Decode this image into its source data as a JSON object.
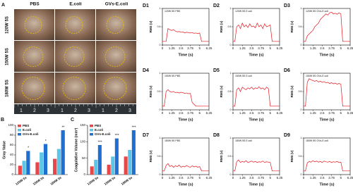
{
  "panel_a": {
    "label": "A",
    "columns": [
      "PBS",
      "E.coli",
      "GVs-E.coli"
    ],
    "rows": [
      "120W 5S",
      "150W 5S",
      "180W 5S"
    ],
    "ruler_labels": [
      "1",
      "2",
      "3"
    ]
  },
  "chart_data": [
    {
      "type": "bar",
      "panel": "B",
      "ylabel": "Gray Value",
      "categories": [
        "120W 5s",
        "150W 5s",
        "180W 5s"
      ],
      "ylim": [
        0,
        100
      ],
      "yticks": [
        0,
        20,
        40,
        60,
        80,
        100
      ],
      "annotations": [
        "*",
        "*",
        "**"
      ],
      "series": [
        {
          "name": "PBS",
          "color": "#e8474a",
          "values": [
            18,
            25,
            32
          ]
        },
        {
          "name": "E.coli",
          "color": "#5cc6e8",
          "values": [
            28,
            45,
            52
          ]
        },
        {
          "name": "GVs-E.coli",
          "color": "#1f6fd0",
          "values": [
            48,
            62,
            90
          ]
        }
      ]
    },
    {
      "type": "bar",
      "panel": "C",
      "ylabel": "Coagulative Volume (mm³)",
      "categories": [
        "120W 5s",
        "150W 5s",
        "180W 5s"
      ],
      "ylim": [
        0,
        150
      ],
      "yticks": [
        0,
        50,
        100,
        150
      ],
      "annotations": [
        "***",
        "***",
        "***"
      ],
      "series": [
        {
          "name": "PBS",
          "color": "#e8474a",
          "values": [
            25,
            30,
            55
          ]
        },
        {
          "name": "E.coli",
          "color": "#5cc6e8",
          "values": [
            45,
            55,
            75
          ]
        },
        {
          "name": "GVs-E.coli",
          "color": "#1f6fd0",
          "values": [
            90,
            110,
            135
          ]
        }
      ]
    },
    {
      "type": "line",
      "panel": "D1",
      "title": "120W 5S PBS",
      "xlabel": "Time (s)",
      "ylabel": "RMS (v)",
      "xlim": [
        0,
        6.25
      ],
      "xticks": [
        0,
        1.25,
        2.5,
        3.75,
        5,
        6.25
      ],
      "ylim": [
        0,
        1
      ],
      "yticks": [
        0,
        0.5,
        1
      ],
      "color": "#e8141c",
      "x": [
        0,
        0.25,
        0.5,
        0.75,
        1,
        1.25,
        1.5,
        1.75,
        2,
        2.25,
        2.5,
        2.75,
        3,
        3.25,
        3.5,
        3.75,
        4,
        4.25,
        4.5,
        4.75,
        5,
        5.25,
        5.5,
        5.75,
        6,
        6.25
      ],
      "values": [
        0.1,
        0.1,
        0.1,
        0.45,
        0.42,
        0.4,
        0.42,
        0.38,
        0.36,
        0.37,
        0.35,
        0.36,
        0.33,
        0.35,
        0.34,
        0.33,
        0.34,
        0.32,
        0.33,
        0.31,
        0.33,
        0.1,
        0.1,
        0.1,
        0.1,
        0.1
      ]
    },
    {
      "type": "line",
      "panel": "D2",
      "title": "120W 5S E.coli",
      "xlabel": "Time (s)",
      "ylabel": "RMS (v)",
      "xlim": [
        0,
        6.25
      ],
      "xticks": [
        0,
        1.25,
        2.5,
        3.75,
        5,
        6.25
      ],
      "ylim": [
        0,
        1
      ],
      "yticks": [
        0,
        0.5,
        1
      ],
      "color": "#e8141c",
      "x": [
        0,
        0.25,
        0.5,
        0.75,
        1,
        1.25,
        1.5,
        1.75,
        2,
        2.25,
        2.5,
        2.75,
        3,
        3.25,
        3.5,
        3.75,
        4,
        4.25,
        4.5,
        4.75,
        5,
        5.25,
        5.5,
        5.75,
        6,
        6.25
      ],
      "values": [
        0.1,
        0.1,
        0.5,
        0.55,
        0.45,
        0.6,
        0.5,
        0.55,
        0.48,
        0.58,
        0.5,
        0.52,
        0.47,
        0.6,
        0.5,
        0.55,
        0.45,
        0.58,
        0.5,
        0.52,
        0.55,
        0.1,
        0.1,
        0.1,
        0.1,
        0.1
      ]
    },
    {
      "type": "line",
      "panel": "D3",
      "title": "120W 5S GVs-E.coli",
      "xlabel": "Time (s)",
      "ylabel": "RMS (v)",
      "xlim": [
        0,
        6.25
      ],
      "xticks": [
        0,
        1.25,
        2.5,
        3.75,
        5,
        6.25
      ],
      "ylim": [
        0,
        1
      ],
      "yticks": [
        0,
        0.5,
        1
      ],
      "color": "#e8141c",
      "x": [
        0,
        0.25,
        0.5,
        0.75,
        1,
        1.25,
        1.5,
        1.75,
        2,
        2.25,
        2.5,
        2.75,
        3,
        3.25,
        3.5,
        3.75,
        4,
        4.25,
        4.5,
        4.75,
        5,
        5.25,
        5.5,
        5.75,
        6,
        6.25
      ],
      "values": [
        0.1,
        0.1,
        0.25,
        0.3,
        0.35,
        0.4,
        0.5,
        0.55,
        0.6,
        0.7,
        0.75,
        0.8,
        0.85,
        0.82,
        0.88,
        0.9,
        0.85,
        0.87,
        0.84,
        0.88,
        0.85,
        0.1,
        0.1,
        0.1,
        0.1,
        0.1
      ]
    },
    {
      "type": "line",
      "panel": "D4",
      "title": "150W 5S PBS",
      "xlabel": "Time (s)",
      "ylabel": "RMS (v)",
      "xlim": [
        0,
        6.25
      ],
      "xticks": [
        0,
        1.25,
        2.5,
        3.75,
        5,
        6.25
      ],
      "ylim": [
        0,
        1
      ],
      "yticks": [
        0,
        0.5,
        1
      ],
      "color": "#e8141c",
      "x": [
        0,
        0.25,
        0.5,
        0.75,
        1,
        1.25,
        1.5,
        1.75,
        2,
        2.25,
        2.5,
        2.75,
        3,
        3.25,
        3.5,
        3.75,
        4,
        4.25,
        4.5,
        4.75,
        5,
        5.25,
        5.5,
        5.75,
        6,
        6.25
      ],
      "values": [
        0.1,
        0.1,
        0.5,
        0.55,
        0.5,
        0.48,
        0.5,
        0.47,
        0.48,
        0.46,
        0.48,
        0.47,
        0.45,
        0.46,
        0.44,
        0.45,
        0.2,
        0.15,
        0.1,
        0.1,
        0.1,
        0.1,
        0.1,
        0.1,
        0.1,
        0.1
      ]
    },
    {
      "type": "line",
      "panel": "D5",
      "title": "150W 5S E.coli",
      "xlabel": "Time (s)",
      "ylabel": "RMS (v)",
      "xlim": [
        0,
        6.25
      ],
      "xticks": [
        0,
        1.25,
        2.5,
        3.75,
        5,
        6.25
      ],
      "ylim": [
        0,
        1
      ],
      "yticks": [
        0,
        0.5,
        1
      ],
      "color": "#e8141c",
      "x": [
        0,
        0.25,
        0.5,
        0.75,
        1,
        1.25,
        1.5,
        1.75,
        2,
        2.25,
        2.5,
        2.75,
        3,
        3.25,
        3.5,
        3.75,
        4,
        4.25,
        4.5,
        4.75,
        5,
        5.25,
        5.5,
        5.75,
        6,
        6.25
      ],
      "values": [
        0.1,
        0.1,
        0.55,
        0.6,
        0.5,
        0.62,
        0.58,
        0.55,
        0.6,
        0.57,
        0.62,
        0.56,
        0.6,
        0.58,
        0.63,
        0.57,
        0.6,
        0.55,
        0.62,
        0.58,
        0.1,
        0.1,
        0.1,
        0.1,
        0.1,
        0.1
      ]
    },
    {
      "type": "line",
      "panel": "D6",
      "title": "150W 5S GVs-E.coli",
      "xlabel": "Time (s)",
      "ylabel": "RMS (v)",
      "xlim": [
        0,
        6.25
      ],
      "xticks": [
        0,
        1.25,
        2.5,
        3.75,
        5,
        6.25
      ],
      "ylim": [
        0,
        1
      ],
      "yticks": [
        0,
        0.5,
        1
      ],
      "color": "#e8141c",
      "x": [
        0,
        0.25,
        0.5,
        0.75,
        1,
        1.25,
        1.5,
        1.75,
        2,
        2.25,
        2.5,
        2.75,
        3,
        3.25,
        3.5,
        3.75,
        4,
        4.25,
        4.5,
        4.75,
        5,
        5.25,
        5.5,
        5.75,
        6,
        6.25
      ],
      "values": [
        0.1,
        0.1,
        0.75,
        0.85,
        0.82,
        0.8,
        0.78,
        0.8,
        0.76,
        0.78,
        0.75,
        0.77,
        0.74,
        0.75,
        0.72,
        0.74,
        0.71,
        0.73,
        0.7,
        0.72,
        0.7,
        0.1,
        0.1,
        0.1,
        0.1,
        0.1
      ]
    },
    {
      "type": "line",
      "panel": "D7",
      "title": "180W 5S PBS",
      "xlabel": "Time (s)",
      "ylabel": "RMS (v)",
      "xlim": [
        0,
        6.25
      ],
      "xticks": [
        0,
        1.25,
        2.5,
        3.75,
        5,
        6.25
      ],
      "ylim": [
        0,
        1
      ],
      "yticks": [
        0,
        0.5,
        1
      ],
      "color": "#e8141c",
      "x": [
        0,
        0.25,
        0.5,
        0.75,
        1,
        1.25,
        1.5,
        1.75,
        2,
        2.25,
        2.5,
        2.75,
        3,
        3.25,
        3.5,
        3.75,
        4,
        4.25,
        4.5,
        4.75,
        5,
        5.25,
        5.5,
        5.75,
        6,
        6.25
      ],
      "values": [
        0.1,
        0.1,
        0.25,
        0.3,
        0.22,
        0.25,
        0.2,
        0.24,
        0.22,
        0.26,
        0.2,
        0.23,
        0.21,
        0.25,
        0.22,
        0.2,
        0.24,
        0.21,
        0.23,
        0.2,
        0.22,
        0.1,
        0.1,
        0.1,
        0.1,
        0.1
      ]
    },
    {
      "type": "line",
      "panel": "D8",
      "title": "180W 5S E.coli",
      "xlabel": "Time (s)",
      "ylabel": "RMS (v)",
      "xlim": [
        0,
        6.25
      ],
      "xticks": [
        0,
        1.25,
        2.5,
        3.75,
        5,
        6.25
      ],
      "ylim": [
        0,
        1
      ],
      "yticks": [
        0,
        0.5,
        1
      ],
      "color": "#e8141c",
      "x": [
        0,
        0.25,
        0.5,
        0.75,
        1,
        1.25,
        1.5,
        1.75,
        2,
        2.25,
        2.5,
        2.75,
        3,
        3.25,
        3.5,
        3.75,
        4,
        4.25,
        4.5,
        4.75,
        5,
        5.25,
        5.5,
        5.75,
        6,
        6.25
      ],
      "values": [
        0.1,
        0.1,
        0.35,
        0.4,
        0.33,
        0.36,
        0.34,
        0.38,
        0.33,
        0.35,
        0.37,
        0.34,
        0.36,
        0.33,
        0.35,
        0.34,
        0.37,
        0.33,
        0.35,
        0.34,
        0.33,
        0.1,
        0.1,
        0.1,
        0.1,
        0.1
      ]
    },
    {
      "type": "line",
      "panel": "D9",
      "title": "180W 5S GVs-E.coli",
      "xlabel": "Time (s)",
      "ylabel": "RMS (v)",
      "xlim": [
        0,
        6.25
      ],
      "xticks": [
        0,
        1.25,
        2.5,
        3.75,
        5,
        6.25
      ],
      "ylim": [
        0,
        1
      ],
      "yticks": [
        0,
        0.5,
        1
      ],
      "color": "#e8141c",
      "x": [
        0,
        0.25,
        0.5,
        0.75,
        1,
        1.25,
        1.5,
        1.75,
        2,
        2.25,
        2.5,
        2.75,
        3,
        3.25,
        3.5,
        3.75,
        4,
        4.25,
        4.5,
        4.75,
        5,
        5.25,
        5.5,
        5.75,
        6,
        6.25
      ],
      "values": [
        0.1,
        0.1,
        0.32,
        0.36,
        0.34,
        0.38,
        0.35,
        0.37,
        0.34,
        0.36,
        0.33,
        0.37,
        0.35,
        0.34,
        0.36,
        0.33,
        0.35,
        0.34,
        0.36,
        0.33,
        0.34,
        0.1,
        0.1,
        0.1,
        0.1,
        0.1
      ]
    }
  ]
}
